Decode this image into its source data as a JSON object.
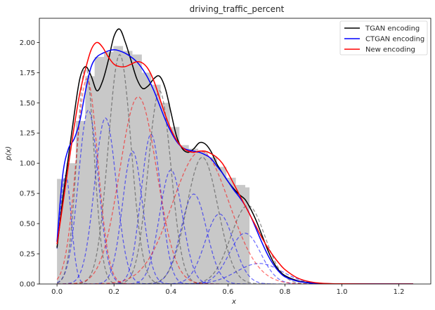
{
  "chart_data": {
    "type": "area",
    "title": "driving_traffic_percent",
    "xlabel": "x",
    "ylabel": "p(x)",
    "xlim": [
      -0.062,
      1.312
    ],
    "ylim": [
      0,
      2.2
    ],
    "xticks": [
      0.0,
      0.2,
      0.4,
      0.6,
      0.8,
      1.0,
      1.2
    ],
    "xtick_labels": [
      "0.0",
      "0.2",
      "0.4",
      "0.6",
      "0.8",
      "1.0",
      "1.2"
    ],
    "yticks": [
      0.0,
      0.25,
      0.5,
      0.75,
      1.0,
      1.25,
      1.5,
      1.75,
      2.0
    ],
    "ytick_labels": [
      "0.00",
      "0.25",
      "0.50",
      "0.75",
      "1.00",
      "1.25",
      "1.50",
      "1.75",
      "2.00"
    ],
    "grid": false,
    "legend_position": "top-right",
    "histogram": {
      "color": "#c8c8c8",
      "bins": [
        {
          "x0": 0.0,
          "x1": 0.033,
          "y": 0.87
        },
        {
          "x0": 0.033,
          "x1": 0.066,
          "y": 1.0
        },
        {
          "x0": 0.066,
          "x1": 0.099,
          "y": 1.35
        },
        {
          "x0": 0.099,
          "x1": 0.132,
          "y": 1.72
        },
        {
          "x0": 0.132,
          "x1": 0.165,
          "y": 1.88
        },
        {
          "x0": 0.165,
          "x1": 0.198,
          "y": 1.92
        },
        {
          "x0": 0.198,
          "x1": 0.231,
          "y": 1.97
        },
        {
          "x0": 0.231,
          "x1": 0.264,
          "y": 1.93
        },
        {
          "x0": 0.264,
          "x1": 0.297,
          "y": 1.9
        },
        {
          "x0": 0.297,
          "x1": 0.33,
          "y": 1.75
        },
        {
          "x0": 0.33,
          "x1": 0.363,
          "y": 1.65
        },
        {
          "x0": 0.363,
          "x1": 0.396,
          "y": 1.5
        },
        {
          "x0": 0.396,
          "x1": 0.429,
          "y": 1.3
        },
        {
          "x0": 0.429,
          "x1": 0.462,
          "y": 1.15
        },
        {
          "x0": 0.462,
          "x1": 0.495,
          "y": 1.12
        },
        {
          "x0": 0.495,
          "x1": 0.528,
          "y": 1.1
        },
        {
          "x0": 0.528,
          "x1": 0.561,
          "y": 1.05
        },
        {
          "x0": 0.561,
          "x1": 0.594,
          "y": 0.97
        },
        {
          "x0": 0.594,
          "x1": 0.627,
          "y": 0.88
        },
        {
          "x0": 0.627,
          "x1": 0.66,
          "y": 0.82
        },
        {
          "x0": 0.66,
          "x1": 0.675,
          "y": 0.8
        }
      ]
    },
    "series": [
      {
        "name": "TGAN encoding",
        "color": "#000000",
        "points": [
          [
            0.0,
            0.3
          ],
          [
            0.02,
            0.7
          ],
          [
            0.04,
            1.05
          ],
          [
            0.06,
            1.4
          ],
          [
            0.08,
            1.7
          ],
          [
            0.1,
            1.8
          ],
          [
            0.12,
            1.72
          ],
          [
            0.14,
            1.6
          ],
          [
            0.16,
            1.68
          ],
          [
            0.18,
            1.85
          ],
          [
            0.2,
            2.05
          ],
          [
            0.22,
            2.11
          ],
          [
            0.24,
            2.0
          ],
          [
            0.26,
            1.85
          ],
          [
            0.28,
            1.7
          ],
          [
            0.3,
            1.62
          ],
          [
            0.32,
            1.64
          ],
          [
            0.34,
            1.7
          ],
          [
            0.36,
            1.72
          ],
          [
            0.38,
            1.62
          ],
          [
            0.4,
            1.42
          ],
          [
            0.42,
            1.22
          ],
          [
            0.44,
            1.12
          ],
          [
            0.46,
            1.09
          ],
          [
            0.48,
            1.12
          ],
          [
            0.5,
            1.17
          ],
          [
            0.52,
            1.16
          ],
          [
            0.54,
            1.1
          ],
          [
            0.56,
            1.0
          ],
          [
            0.58,
            0.92
          ],
          [
            0.6,
            0.85
          ],
          [
            0.62,
            0.79
          ],
          [
            0.64,
            0.74
          ],
          [
            0.66,
            0.7
          ],
          [
            0.68,
            0.62
          ],
          [
            0.7,
            0.52
          ],
          [
            0.72,
            0.4
          ],
          [
            0.74,
            0.28
          ],
          [
            0.76,
            0.18
          ],
          [
            0.78,
            0.11
          ],
          [
            0.8,
            0.07
          ],
          [
            0.84,
            0.03
          ],
          [
            0.88,
            0.012
          ],
          [
            0.92,
            0.005
          ],
          [
            1.0,
            0.001
          ],
          [
            1.25,
            0.0
          ]
        ]
      },
      {
        "name": "CTGAN encoding",
        "color": "#0000ff",
        "points": [
          [
            0.0,
            0.35
          ],
          [
            0.02,
            0.9
          ],
          [
            0.04,
            1.12
          ],
          [
            0.06,
            1.2
          ],
          [
            0.08,
            1.35
          ],
          [
            0.1,
            1.6
          ],
          [
            0.12,
            1.8
          ],
          [
            0.14,
            1.88
          ],
          [
            0.16,
            1.91
          ],
          [
            0.18,
            1.93
          ],
          [
            0.2,
            1.94
          ],
          [
            0.22,
            1.93
          ],
          [
            0.24,
            1.91
          ],
          [
            0.26,
            1.88
          ],
          [
            0.28,
            1.84
          ],
          [
            0.3,
            1.78
          ],
          [
            0.32,
            1.7
          ],
          [
            0.34,
            1.6
          ],
          [
            0.36,
            1.48
          ],
          [
            0.38,
            1.36
          ],
          [
            0.4,
            1.26
          ],
          [
            0.42,
            1.18
          ],
          [
            0.44,
            1.13
          ],
          [
            0.46,
            1.11
          ],
          [
            0.48,
            1.1
          ],
          [
            0.5,
            1.09
          ],
          [
            0.52,
            1.07
          ],
          [
            0.54,
            1.04
          ],
          [
            0.56,
            0.98
          ],
          [
            0.58,
            0.92
          ],
          [
            0.6,
            0.85
          ],
          [
            0.62,
            0.78
          ],
          [
            0.64,
            0.72
          ],
          [
            0.66,
            0.65
          ],
          [
            0.68,
            0.56
          ],
          [
            0.7,
            0.45
          ],
          [
            0.72,
            0.34
          ],
          [
            0.74,
            0.24
          ],
          [
            0.76,
            0.16
          ],
          [
            0.78,
            0.1
          ],
          [
            0.8,
            0.06
          ],
          [
            0.84,
            0.025
          ],
          [
            0.88,
            0.01
          ],
          [
            0.92,
            0.004
          ],
          [
            1.0,
            0.001
          ],
          [
            1.25,
            0.0
          ]
        ]
      },
      {
        "name": "New encoding",
        "color": "#ff0000",
        "points": [
          [
            0.0,
            0.33
          ],
          [
            0.02,
            0.65
          ],
          [
            0.04,
            0.98
          ],
          [
            0.06,
            1.3
          ],
          [
            0.08,
            1.58
          ],
          [
            0.1,
            1.78
          ],
          [
            0.12,
            1.94
          ],
          [
            0.14,
            2.0
          ],
          [
            0.16,
            1.96
          ],
          [
            0.18,
            1.88
          ],
          [
            0.2,
            1.82
          ],
          [
            0.22,
            1.8
          ],
          [
            0.24,
            1.8
          ],
          [
            0.26,
            1.82
          ],
          [
            0.28,
            1.84
          ],
          [
            0.3,
            1.83
          ],
          [
            0.32,
            1.78
          ],
          [
            0.34,
            1.68
          ],
          [
            0.36,
            1.54
          ],
          [
            0.38,
            1.4
          ],
          [
            0.4,
            1.28
          ],
          [
            0.42,
            1.19
          ],
          [
            0.44,
            1.13
          ],
          [
            0.46,
            1.1
          ],
          [
            0.48,
            1.09
          ],
          [
            0.5,
            1.1
          ],
          [
            0.52,
            1.1
          ],
          [
            0.54,
            1.08
          ],
          [
            0.56,
            1.05
          ],
          [
            0.58,
            1.0
          ],
          [
            0.6,
            0.92
          ],
          [
            0.62,
            0.83
          ],
          [
            0.64,
            0.74
          ],
          [
            0.66,
            0.65
          ],
          [
            0.68,
            0.56
          ],
          [
            0.7,
            0.47
          ],
          [
            0.72,
            0.38
          ],
          [
            0.74,
            0.3
          ],
          [
            0.76,
            0.23
          ],
          [
            0.78,
            0.17
          ],
          [
            0.8,
            0.12
          ],
          [
            0.84,
            0.055
          ],
          [
            0.88,
            0.022
          ],
          [
            0.92,
            0.008
          ],
          [
            1.0,
            0.001
          ],
          [
            1.25,
            0.0
          ]
        ]
      }
    ],
    "components": [
      {
        "color": "#0000ff",
        "mu": 0.03,
        "sigma": 0.02,
        "weight": 0.0451
      },
      {
        "color": "#0000ff",
        "mu": 0.11,
        "sigma": 0.035,
        "weight": 0.1263
      },
      {
        "color": "#0000ff",
        "mu": 0.17,
        "sigma": 0.038,
        "weight": 0.1309
      },
      {
        "color": "#0000ff",
        "mu": 0.265,
        "sigma": 0.035,
        "weight": 0.0965
      },
      {
        "color": "#0000ff",
        "mu": 0.33,
        "sigma": 0.035,
        "weight": 0.1088
      },
      {
        "color": "#0000ff",
        "mu": 0.4,
        "sigma": 0.04,
        "weight": 0.0947
      },
      {
        "color": "#0000ff",
        "mu": 0.48,
        "sigma": 0.045,
        "weight": 0.084
      },
      {
        "color": "#0000ff",
        "mu": 0.57,
        "sigma": 0.05,
        "weight": 0.0727
      },
      {
        "color": "#0000ff",
        "mu": 0.66,
        "sigma": 0.055,
        "weight": 0.058
      },
      {
        "color": "#0000ff",
        "mu": 0.71,
        "sigma": 0.08,
        "weight": 0.0341
      },
      {
        "color": "#404040",
        "mu": 0.1,
        "sigma": 0.03,
        "weight": 0.1354
      },
      {
        "color": "#404040",
        "mu": 0.22,
        "sigma": 0.04,
        "weight": 0.1905
      },
      {
        "color": "#404040",
        "mu": 0.36,
        "sigma": 0.04,
        "weight": 0.1604
      },
      {
        "color": "#404040",
        "mu": 0.51,
        "sigma": 0.055,
        "weight": 0.1447
      },
      {
        "color": "#404040",
        "mu": 0.67,
        "sigma": 0.06,
        "weight": 0.0977
      },
      {
        "color": "#ff0000",
        "mu": 0.105,
        "sigma": 0.038,
        "weight": 0.1619
      },
      {
        "color": "#ff0000",
        "mu": 0.285,
        "sigma": 0.065,
        "weight": 0.2526
      },
      {
        "color": "#ff0000",
        "mu": 0.505,
        "sigma": 0.1,
        "weight": 0.2757
      }
    ]
  }
}
